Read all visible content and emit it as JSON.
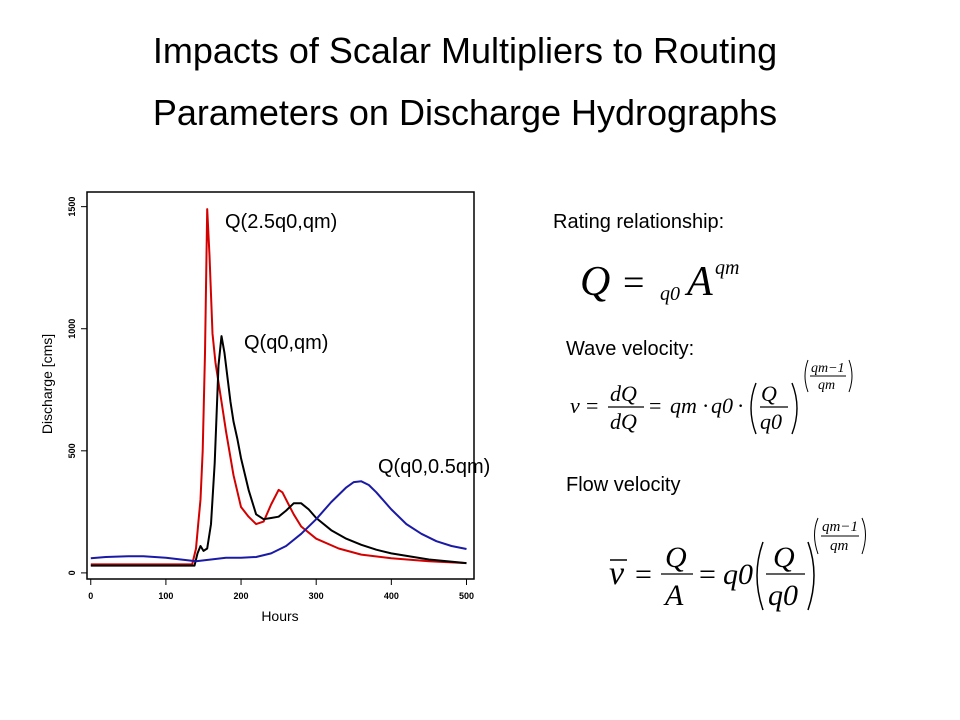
{
  "slide": {
    "title_line1": "Impacts of Scalar Multipliers to Routing",
    "title_line2": "Parameters on Discharge Hydrographs"
  },
  "chart_data": {
    "type": "line",
    "xlabel": "Hours",
    "ylabel": "Discharge [cms]",
    "xlim": [
      -5,
      510
    ],
    "ylim": [
      -25,
      1560
    ],
    "xticks": [
      0,
      100,
      200,
      300,
      400,
      500
    ],
    "yticks": [
      0,
      500,
      1000,
      1500
    ],
    "grid": false,
    "series": [
      {
        "name": "Q(2.5q0,qm)",
        "color": "#d40000",
        "x": [
          0,
          100,
          135,
          140,
          143,
          146,
          149,
          152,
          155,
          158,
          162,
          166,
          170,
          175,
          180,
          190,
          200,
          210,
          220,
          230,
          240,
          250,
          255,
          260,
          265,
          270,
          280,
          300,
          330,
          360,
          400,
          450,
          500
        ],
        "y": [
          35,
          35,
          35,
          100,
          200,
          300,
          500,
          900,
          1490,
          1300,
          980,
          860,
          780,
          680,
          580,
          400,
          270,
          230,
          200,
          210,
          280,
          340,
          330,
          300,
          270,
          240,
          190,
          140,
          100,
          75,
          60,
          48,
          40
        ]
      },
      {
        "name": "Q(q0,qm)",
        "color": "#000000",
        "x": [
          0,
          100,
          138,
          142,
          146,
          150,
          155,
          160,
          165,
          170,
          174,
          178,
          182,
          186,
          190,
          195,
          200,
          210,
          220,
          230,
          240,
          250,
          260,
          270,
          280,
          290,
          300,
          320,
          340,
          360,
          380,
          400,
          450,
          500
        ],
        "y": [
          30,
          30,
          30,
          80,
          110,
          90,
          100,
          200,
          450,
          850,
          970,
          900,
          800,
          700,
          620,
          550,
          470,
          340,
          240,
          220,
          225,
          230,
          255,
          285,
          285,
          260,
          225,
          175,
          140,
          115,
          95,
          80,
          55,
          40
        ]
      },
      {
        "name": "Q(q0,0.5qm)",
        "color": "#1a1aa6",
        "x": [
          0,
          20,
          50,
          70,
          100,
          120,
          140,
          160,
          180,
          200,
          220,
          240,
          260,
          280,
          300,
          320,
          340,
          350,
          360,
          370,
          380,
          400,
          420,
          440,
          460,
          480,
          500
        ],
        "y": [
          60,
          65,
          68,
          68,
          62,
          55,
          48,
          55,
          62,
          62,
          65,
          80,
          110,
          160,
          220,
          290,
          350,
          372,
          375,
          360,
          330,
          260,
          200,
          160,
          130,
          110,
          98
        ]
      }
    ],
    "annotations": [
      "Q(2.5q0,qm)",
      "Q(q0,qm)",
      "Q(q0,0.5qm)"
    ]
  },
  "equations": {
    "rating_label": "Rating relationship:",
    "wave_label": "Wave velocity:",
    "flow_label": "Flow velocity",
    "rating": {
      "Q": "Q",
      "equals": "=",
      "q0": "q0",
      "A": "A",
      "qm": "qm"
    },
    "wave": {
      "v": "v",
      "equals": "=",
      "dQ": "dQ",
      "dA": "dQ",
      "qm": "qm",
      "dot": "·",
      "q0": "q0",
      "Q": "Q",
      "exp_num": "qm−1",
      "exp_den": "qm"
    },
    "flow": {
      "vbar": "v",
      "equals": "=",
      "Q": "Q",
      "A": "A",
      "q0": "q0",
      "exp_num": "qm−1",
      "exp_den": "qm"
    }
  }
}
